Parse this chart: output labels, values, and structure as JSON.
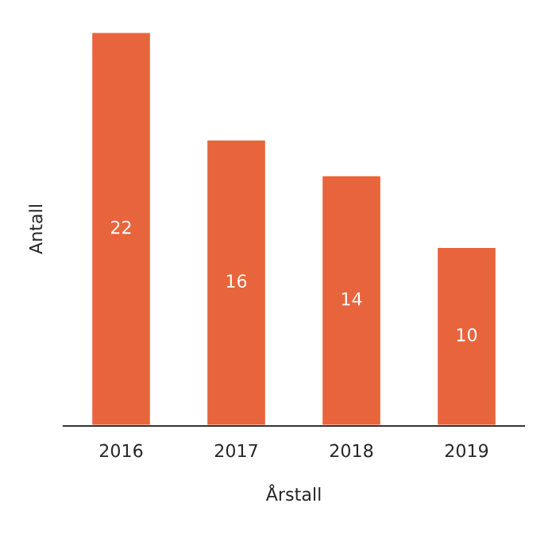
{
  "chart_data": {
    "type": "bar",
    "xlabel": "Årstall",
    "ylabel": "Antall",
    "categories": [
      "2016",
      "2017",
      "2018",
      "2019"
    ],
    "values": [
      22,
      16,
      14,
      10
    ],
    "color": "#e8643c",
    "data_labels": true
  }
}
